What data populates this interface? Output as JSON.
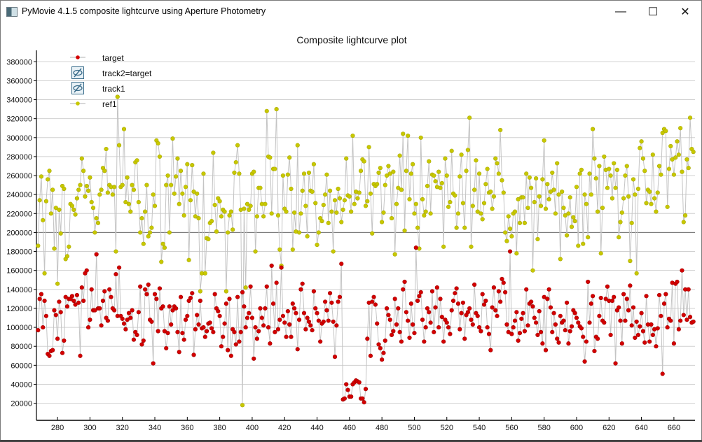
{
  "window": {
    "title": "PyMovie 4.1.5 composite lightcurve using Aperture Photometry",
    "minimize": "—",
    "maximize": "☐",
    "close": "✕"
  },
  "chart_data": {
    "type": "scatter",
    "title": "Composite lightcurve plot",
    "xlabel": "",
    "ylabel": "",
    "xlim": [
      267,
      673
    ],
    "ylim": [
      2000,
      392000
    ],
    "xticks": [
      280,
      300,
      320,
      340,
      360,
      380,
      400,
      420,
      440,
      460,
      480,
      500,
      520,
      540,
      560,
      580,
      600,
      620,
      640,
      660
    ],
    "yticks": [
      20000,
      40000,
      60000,
      80000,
      100000,
      120000,
      140000,
      160000,
      180000,
      200000,
      220000,
      240000,
      260000,
      280000,
      300000,
      320000,
      340000,
      360000,
      380000
    ],
    "grid": true,
    "reference_line_y": 200000,
    "legend_placement": "top-left",
    "x_start": 268,
    "x_step": 1,
    "value_scale": 1000,
    "legend": [
      {
        "label": "target",
        "kind": "series",
        "color": "#d40000"
      },
      {
        "label": "track2=target",
        "kind": "hidden",
        "color": "#3c6e8c"
      },
      {
        "label": "track1",
        "kind": "hidden",
        "color": "#3c6e8c"
      },
      {
        "label": "ref1",
        "kind": "series",
        "color": "#c8c800"
      }
    ],
    "series": [
      {
        "name": "ref1",
        "color": "#c8c800",
        "values_k": [
          186,
          234,
          259,
          213,
          157,
          233,
          256,
          265,
          220,
          245,
          183,
          226,
          146,
          224,
          199,
          249,
          246,
          172,
          175,
          185,
          230,
          228,
          224,
          219,
          236,
          245,
          250,
          278,
          265,
          238,
          249,
          244,
          258,
          232,
          226,
          200,
          215,
          210,
          240,
          245,
          268,
          265,
          288,
          242,
          250,
          248,
          240,
          248,
          180,
          343,
          292,
          248,
          250,
          309,
          232,
          258,
          230,
          222,
          250,
          245,
          274,
          276,
          232,
          200,
          215,
          188,
          222,
          250,
          196,
          200,
          205,
          240,
          228,
          297,
          294,
          280,
          169,
          188,
          184,
          250,
          260,
          200,
          250,
          299,
          241,
          259,
          278,
          230,
          265,
          241,
          218,
          248,
          272,
          171,
          234,
          271,
          243,
          217,
          241,
          215,
          138,
          157,
          262,
          157,
          194,
          193,
          210,
          212,
          284,
          229,
          201,
          236,
          233,
          217,
          224,
          222,
          138,
          200,
          218,
          222,
          203,
          263,
          274,
          292,
          262,
          224,
          18,
          225,
          142,
          230,
          224,
          228,
          262,
          264,
          180,
          217,
          247,
          247,
          230,
          217,
          230,
          328,
          280,
          279,
          220,
          267,
          267,
          330,
          218,
          182,
          165,
          260,
          225,
          222,
          261,
          279,
          246,
          182,
          221,
          201,
          292,
          200,
          220,
          244,
          262,
          228,
          196,
          263,
          244,
          243,
          272,
          231,
          187,
          200,
          215,
          212,
          229,
          240,
          261,
          210,
          244,
          222,
          180,
          234,
          221,
          246,
          236,
          211,
          224,
          234,
          278,
          239,
          238,
          222,
          302,
          230,
          243,
          236,
          242,
          265,
          277,
          275,
          228,
          233,
          290,
          241,
          199,
          251,
          249,
          251,
          263,
          268,
          211,
          221,
          250,
          260,
          270,
          262,
          215,
          264,
          177,
          230,
          247,
          281,
          245,
          304,
          202,
          265,
          302,
          235,
          262,
          272,
          220,
          230,
          205,
          183,
          300,
          235,
          218,
          222,
          249,
          275,
          220,
          261,
          260,
          254,
          248,
          264,
          247,
          252,
          185,
          278,
          260,
          227,
          232,
          286,
          241,
          239,
          205,
          220,
          259,
          282,
          231,
          205,
          265,
          287,
          321,
          185,
          228,
          245,
          276,
          222,
          262,
          220,
          214,
          231,
          251,
          267,
          242,
          243,
          225,
          238,
          278,
          273,
          262,
          308,
          255,
          242,
          200,
          191,
          217,
          204,
          196,
          220,
          222,
          178,
          235,
          210,
          237,
          237,
          210,
          262,
          226,
          258,
          247,
          160,
          232,
          257,
          193,
          238,
          228,
          256,
          297,
          225,
          251,
          235,
          243,
          263,
          245,
          220,
          273,
          240,
          172,
          243,
          226,
          218,
          197,
          220,
          237,
          206,
          216,
          212,
          248,
          186,
          262,
          266,
          188,
          240,
          230,
          195,
          262,
          240,
          309,
          278,
          257,
          222,
          270,
          178,
          226,
          280,
          266,
          247,
          267,
          260,
          236,
          273,
          247,
          266,
          195,
          211,
          221,
          236,
          260,
          270,
          238,
          170,
          210,
          256,
          240,
          157,
          246,
          289,
          296,
          278,
          265,
          231,
          245,
          243,
          230,
          282,
          236,
          222,
          242,
          270,
          261,
          305,
          309,
          307,
          227,
          267,
          291,
          277,
          261,
          279,
          296,
          282,
          310,
          264,
          211,
          218,
          277,
          268,
          321,
          288,
          285
        ]
      },
      {
        "name": "target",
        "color": "#d40000",
        "values_k": [
          97,
          130,
          135,
          100,
          128,
          112,
          72,
          70,
          75,
          76,
          118,
          113,
          88,
          127,
          116,
          73,
          86,
          132,
          122,
          130,
          130,
          133,
          128,
          124,
          134,
          126,
          70,
          142,
          128,
          157,
          160,
          100,
          108,
          140,
          118,
          118,
          177,
          120,
          120,
          102,
          128,
          138,
          110,
          107,
          140,
          132,
          120,
          118,
          156,
          112,
          163,
          112,
          109,
          104,
          98,
          108,
          115,
          110,
          118,
          87,
          95,
          92,
          116,
          143,
          82,
          86,
          140,
          135,
          145,
          108,
          106,
          62,
          135,
          130,
          96,
          141,
          120,
          122,
          96,
          78,
          94,
          122,
          103,
          118,
          122,
          120,
          95,
          74,
          132,
          94,
          87,
          108,
          112,
          128,
          131,
          136,
          71,
          98,
          113,
          103,
          128,
          99,
          100,
          90,
          96,
          104,
          105,
          99,
          95,
          135,
          120,
          117,
          112,
          80,
          90,
          104,
          125,
          76,
          130,
          70,
          98,
          95,
          82,
          132,
          85,
          95,
          137,
          122,
          100,
          110,
          115,
          143,
          110,
          67,
          100,
          88,
          96,
          120,
          110,
          102,
          120,
          143,
          100,
          83,
          165,
          125,
          95,
          147,
          98,
          108,
          163,
          112,
          105,
          90,
          117,
          103,
          90,
          125,
          120,
          115,
          77,
          108,
          140,
          146,
          115,
          98,
          110,
          106,
          102,
          97,
          138,
          120,
          115,
          107,
          85,
          104,
          106,
          127,
          118,
          107,
          136,
          126,
          106,
          69,
          102,
          127,
          132,
          167,
          24,
          25,
          40,
          34,
          27,
          27,
          40,
          42,
          44,
          43,
          42,
          25,
          25,
          21,
          35,
          88,
          126,
          70,
          127,
          132,
          124,
          104,
          82,
          78,
          66,
          73,
          86,
          120,
          113,
          108,
          92,
          96,
          130,
          103,
          120,
          95,
          85,
          140,
          148,
          116,
          107,
          89,
          125,
          103,
          94,
          184,
          128,
          133,
          137,
          108,
          85,
          100,
          120,
          116,
          105,
          138,
          95,
          121,
          142,
          100,
          130,
          111,
          85,
          108,
          105,
          100,
          93,
          118,
          128,
          136,
          141,
          125,
          98,
          115,
          126,
          88,
          113,
          116,
          120,
          108,
          103,
          145,
          115,
          112,
          100,
          96,
          135,
          124,
          128,
          100,
          93,
          76,
          121,
          142,
          118,
          112,
          138,
          127,
          151,
          147,
          137,
          103,
          95,
          180,
          93,
          100,
          107,
          116,
          86,
          94,
          109,
          115,
          96,
          140,
          102,
          125,
          127,
          122,
          110,
          105,
          92,
          117,
          95,
          83,
          132,
          76,
          130,
          140,
          121,
          95,
          115,
          103,
          88,
          84,
          112,
          105,
          107,
          97,
          126,
          83,
          96,
          101,
          118,
          115,
          110,
          105,
          101,
          99,
          90,
          64,
          85,
          148,
          105,
          125,
          133,
          75,
          90,
          88,
          112,
          131,
          107,
          105,
          130,
          143,
          128,
          92,
          128,
          132,
          62,
          118,
          121,
          107,
          83,
          135,
          107,
          130,
          118,
          144,
          102,
          121,
          89,
          106,
          92,
          101,
          115,
          96,
          84,
          133,
          103,
          85,
          103,
          92,
          98,
          80,
          99,
          134,
          112,
          51,
          125,
          135,
          100,
          109,
          107,
          147,
          83,
          146,
          148,
          98,
          107,
          160,
          113,
          140,
          108,
          140,
          111,
          105,
          106
        ]
      }
    ]
  }
}
